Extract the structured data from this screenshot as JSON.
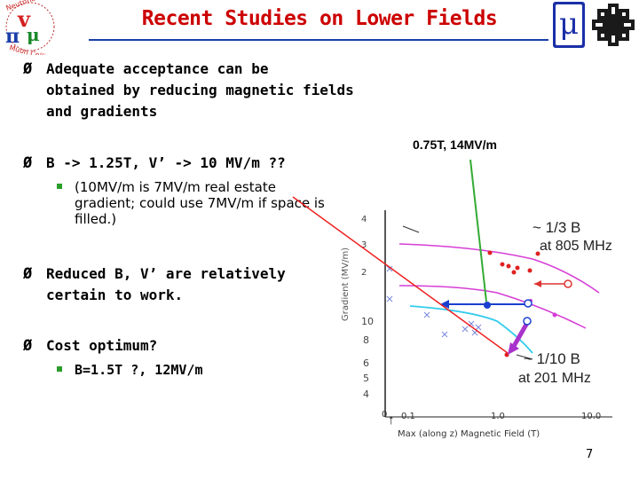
{
  "slide": {
    "title": "Recent Studies on Lower Fields",
    "bullets": [
      {
        "lines": [
          "Adequate acceptance can be",
          "obtained by reducing magnetic fields",
          "and gradients"
        ]
      },
      {
        "lines": [
          "B -> 1.25T, V’ -> 10 MV/m ??"
        ]
      },
      {
        "lines": [
          "Reduced B, V’ are relatively",
          "certain to work."
        ]
      },
      {
        "lines": [
          "Cost optimum?"
        ]
      }
    ],
    "sub_bullets": [
      {
        "lines": [
          "(10MV/m is 7MV/m real estate",
          "gradient; could use 7MV/m if space is",
          "filled.)"
        ]
      },
      {
        "lines": [
          "B=1.5T ?, 12MV/m"
        ]
      }
    ],
    "annotation": "0.75T, 14MV/m",
    "page_number": "7",
    "bullet_glyph": "Ø",
    "colors": {
      "title": "#cc0000",
      "rule": "#1a3fa8",
      "sub_bullet": "#2a9d2a",
      "annotation_arrow": "#33aa33",
      "red_arrow": "#ee2222"
    }
  },
  "logos": {
    "left": {
      "ring_text_top": "Neutrino Factory",
      "ring_text_bottom": "Muon Collider",
      "symbols": "ν π μ"
    },
    "mu_logo": "μ",
    "fermilab_icon": "fermilab-icon"
  },
  "plot": {
    "y_label": "Gradient (MV/m)",
    "x_label": "Max (along z) Magnetic Field (T)",
    "x_ticks": [
      "0",
      "0.1",
      "1.0",
      "10.0"
    ],
    "y_ticks_upper": [
      "4",
      "3",
      "2"
    ],
    "y_ticks_lower": [
      "10",
      "8",
      "6",
      "5",
      "4"
    ],
    "curve_805_label_1": "~ 1/3  B",
    "curve_805_label_2": "at 805 MHz",
    "curve_201_label_1": "~ 1/10  B",
    "curve_201_label_2": "at 201 MHz"
  }
}
